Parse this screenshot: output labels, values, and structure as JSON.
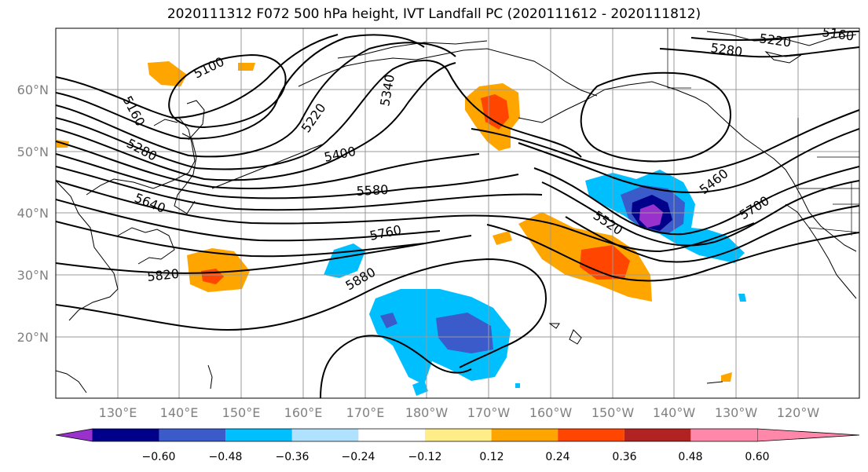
{
  "title": "2020111312 F072 500 hPa height, IVT Landfall PC (2020111612 - 2020111812)",
  "lat_labels": [
    "60°N",
    "50°N",
    "40°N",
    "30°N",
    "20°N"
  ],
  "lon_labels": [
    "130°E",
    "140°E",
    "150°E",
    "160°E",
    "170°E",
    "180°W",
    "170°W",
    "160°W",
    "150°W",
    "140°W",
    "130°W",
    "120°W"
  ],
  "contour_labels": [
    "5100",
    "5160",
    "5220",
    "5280",
    "5340",
    "5400",
    "5460",
    "5520",
    "5580",
    "5640",
    "5700",
    "5760",
    "5820",
    "5880",
    "5220",
    "5280",
    "5160"
  ],
  "colorbar": {
    "ticks": [
      "−0.60",
      "−0.48",
      "−0.36",
      "−0.24",
      "−0.12",
      "0.12",
      "0.24",
      "0.36",
      "0.48",
      "0.60"
    ],
    "colors": [
      "#9932cc",
      "#00008b",
      "#3a5bc9",
      "#00bfff",
      "#b0e2ff",
      "#ffffff",
      "#ffee88",
      "#ffa500",
      "#ff4500",
      "#b22222",
      "#ff88aa"
    ]
  }
}
